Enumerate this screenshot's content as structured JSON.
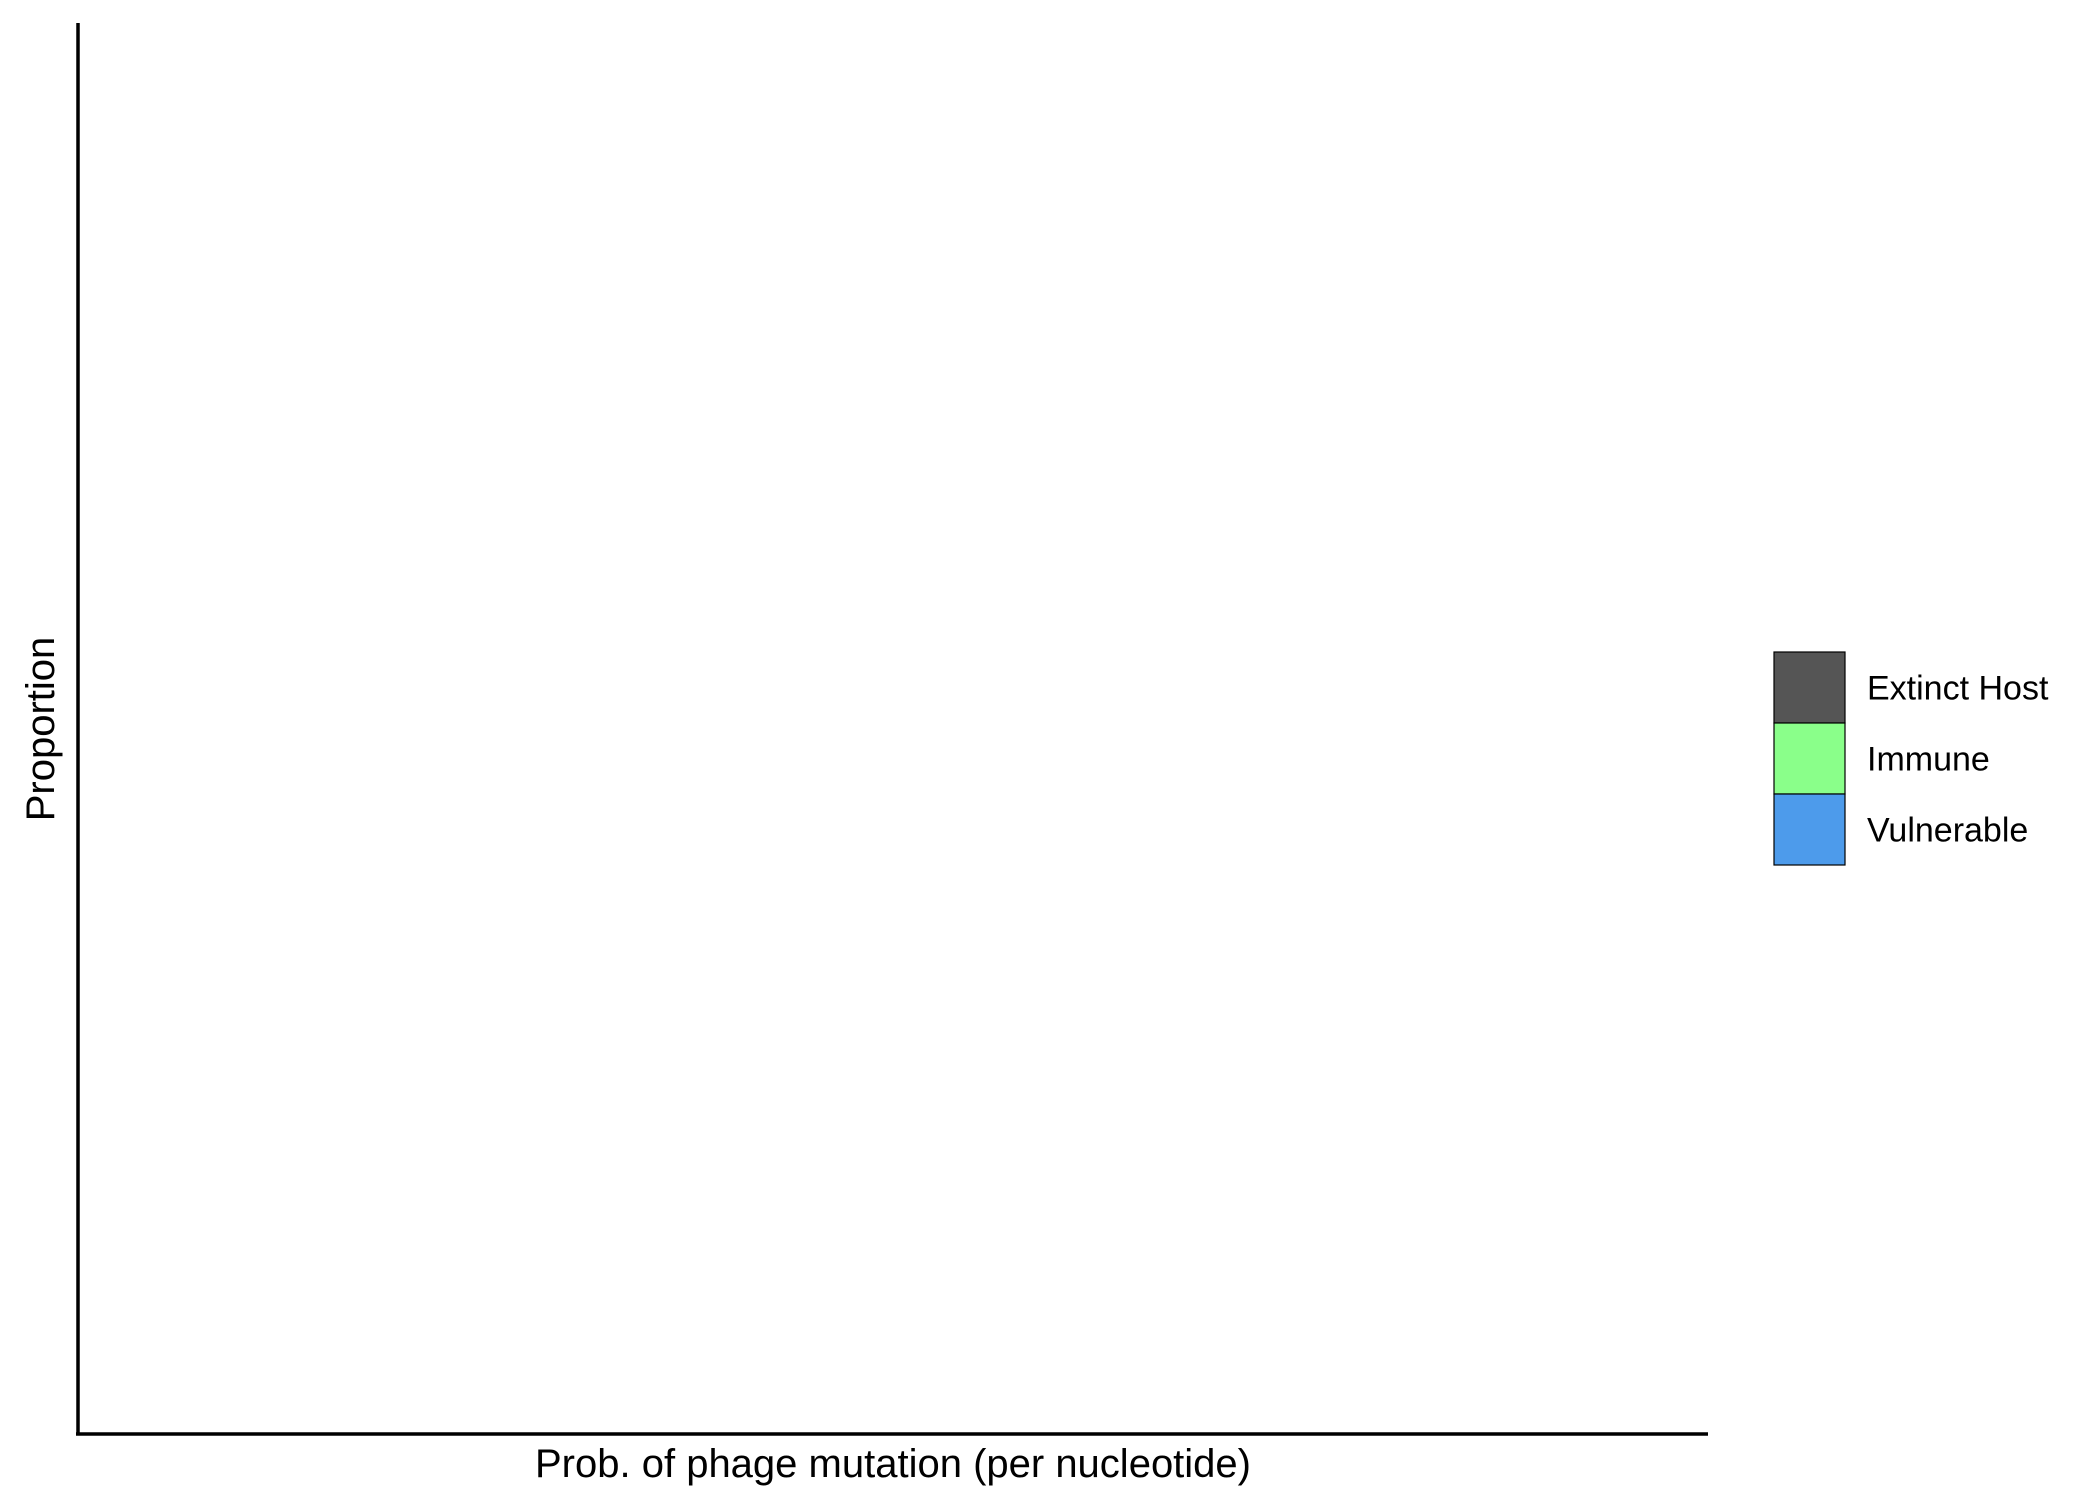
{
  "chart_data": {
    "type": "bar",
    "title": "",
    "xlabel": "Prob. of phage mutation (per nucleotide)",
    "ylabel": "Proportion",
    "categories": [],
    "series": [
      {
        "name": "Extinct Host",
        "color": "#555555",
        "values": []
      },
      {
        "name": "Immune",
        "color": "#8AFF8A",
        "values": []
      },
      {
        "name": "Vulnerable",
        "color": "#4D9BEB",
        "values": []
      }
    ],
    "legend": {
      "position": "right",
      "items": [
        {
          "label": "Extinct Host",
          "color": "#555555"
        },
        {
          "label": "Immune",
          "color": "#8AFF8A"
        },
        {
          "label": "Vulnerable",
          "color": "#4D9BEB"
        }
      ]
    },
    "grid": false,
    "stacked": true
  }
}
